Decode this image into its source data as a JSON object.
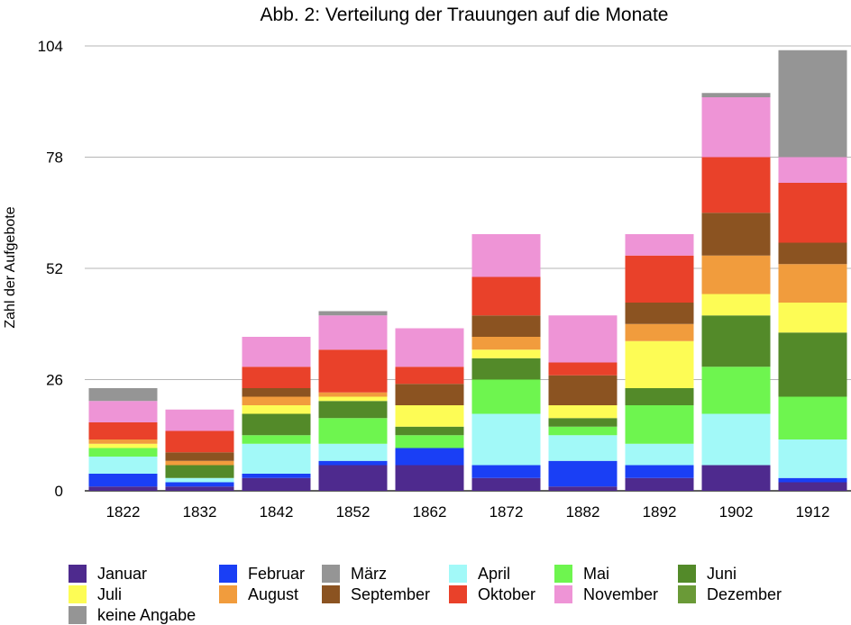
{
  "chart_data": {
    "type": "bar",
    "stacked": true,
    "title": "Abb. 2: Verteilung der Trauungen auf die Monate",
    "ylabel": "Zahl der Aufgebote",
    "xlabel": "",
    "ylim": [
      0,
      104
    ],
    "yticks": [
      0,
      26,
      52,
      78,
      104
    ],
    "grid": true,
    "legend_position": "bottom",
    "categories": [
      "1822",
      "1832",
      "1842",
      "1852",
      "1862",
      "1872",
      "1882",
      "1892",
      "1902",
      "1912"
    ],
    "series": [
      {
        "name": "Januar",
        "color": "#4e2a8e",
        "values": [
          1,
          1,
          3,
          6,
          6,
          3,
          1,
          3,
          6,
          2
        ]
      },
      {
        "name": "Februar",
        "color": "#1a3ff5",
        "values": [
          3,
          1,
          1,
          1,
          4,
          3,
          6,
          3,
          0,
          1
        ]
      },
      {
        "name": "März",
        "color": "#959595",
        "values": [
          0,
          0,
          0,
          0,
          0,
          0,
          0,
          0,
          0,
          0
        ]
      },
      {
        "name": "April",
        "color": "#a2f9f8",
        "values": [
          4,
          1,
          7,
          4,
          0,
          12,
          6,
          5,
          12,
          9
        ]
      },
      {
        "name": "Mai",
        "color": "#6ef54f",
        "values": [
          2,
          0,
          2,
          6,
          3,
          8,
          2,
          9,
          11,
          10
        ]
      },
      {
        "name": "Juni",
        "color": "#538a29",
        "values": [
          0,
          3,
          5,
          4,
          2,
          5,
          2,
          4,
          12,
          15
        ]
      },
      {
        "name": "Juli",
        "color": "#fdfc55",
        "values": [
          1,
          0,
          2,
          1,
          5,
          2,
          3,
          11,
          5,
          7
        ]
      },
      {
        "name": "August",
        "color": "#f19c3d",
        "values": [
          1,
          1,
          2,
          1,
          0,
          3,
          0,
          4,
          9,
          9
        ]
      },
      {
        "name": "September",
        "color": "#8b5321",
        "values": [
          0,
          2,
          2,
          0,
          5,
          5,
          7,
          5,
          10,
          5
        ]
      },
      {
        "name": "Oktober",
        "color": "#e9412a",
        "values": [
          4,
          5,
          5,
          10,
          4,
          9,
          3,
          11,
          13,
          14
        ]
      },
      {
        "name": "November",
        "color": "#ee94d6",
        "values": [
          5,
          5,
          7,
          8,
          9,
          10,
          11,
          5,
          14,
          6
        ]
      },
      {
        "name": "Dezember",
        "color": "#6a9a37",
        "values": [
          0,
          0,
          0,
          0,
          0,
          0,
          0,
          0,
          0,
          0
        ]
      },
      {
        "name": "keine Angabe",
        "color": "#959595",
        "values": [
          3,
          0,
          0,
          1,
          0,
          0,
          0,
          0,
          1,
          25
        ]
      }
    ]
  }
}
